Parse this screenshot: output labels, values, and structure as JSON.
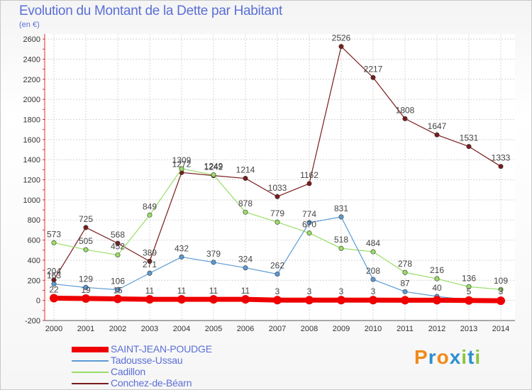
{
  "chart": {
    "title": "Evolution du Montant de la Dette par Habitant",
    "subtitle": "(en €)"
  },
  "brand": {
    "letters": [
      "P",
      "r",
      "o",
      "x",
      "i",
      "t",
      "i"
    ]
  },
  "colors": {
    "title": "#5b6fd6",
    "brand_letters": [
      "#f08a17",
      "#2e8fd0",
      "#f08a17",
      "#2e8fd0",
      "#8cc63f",
      "#2e8fd0",
      "#8cc63f"
    ]
  },
  "chart_data": {
    "type": "line",
    "title": "Evolution du Montant de la Dette par Habitant",
    "subtitle": "(en €)",
    "x": [
      2000,
      2001,
      2002,
      2003,
      2004,
      2005,
      2006,
      2007,
      2008,
      2009,
      2010,
      2011,
      2012,
      2013,
      2014
    ],
    "yticks": [
      -200,
      0,
      200,
      400,
      600,
      800,
      1000,
      1200,
      1400,
      1600,
      1800,
      2000,
      2200,
      2400,
      2600
    ],
    "ylim": [
      -200,
      2650
    ],
    "grid": true,
    "legend_position": "bottom-left",
    "series": [
      {
        "name": "SAINT-JEAN-POUDGE",
        "color": "#ee0000",
        "values": [
          22,
          19,
          15,
          11,
          11,
          11,
          11,
          3,
          3,
          3,
          3,
          2,
          2,
          -1,
          -3
        ],
        "labels": [
          "22",
          "19",
          "15",
          "11",
          "11",
          "11",
          "11",
          "3",
          "3",
          "3",
          "3",
          null,
          null,
          null,
          null
        ]
      },
      {
        "name": "Tadousse-Ussau",
        "color": "#5b9bd5",
        "values": [
          163,
          129,
          106,
          271,
          432,
          379,
          324,
          262,
          774,
          831,
          208,
          87,
          40,
          5,
          3
        ],
        "labels": [
          "163",
          "129",
          "106",
          "271",
          "432",
          "379",
          "324",
          "262",
          "774",
          "831",
          "208",
          "87",
          "40",
          "5",
          "3"
        ]
      },
      {
        "name": "Cadillon",
        "color": "#99dd66",
        "values": [
          573,
          505,
          452,
          849,
          1309,
          1249,
          878,
          779,
          670,
          518,
          484,
          278,
          216,
          136,
          109
        ],
        "labels": [
          "573",
          "505",
          "452",
          "849",
          "1309",
          "1249",
          "878",
          "779",
          "670",
          "518",
          "484",
          "278",
          "216",
          "136",
          "109"
        ]
      },
      {
        "name": "Conchez-de-Béarn",
        "color": "#7a1c1c",
        "values": [
          204,
          725,
          568,
          389,
          1272,
          1242,
          1214,
          1033,
          1162,
          2526,
          2217,
          1808,
          1647,
          1531,
          1333
        ],
        "labels": [
          "204",
          "725",
          "568",
          "389",
          "1272",
          "1242",
          "1214",
          "1033",
          "1162",
          "2526",
          "2217",
          "1808",
          "1647",
          "1531",
          "1333"
        ]
      }
    ]
  }
}
